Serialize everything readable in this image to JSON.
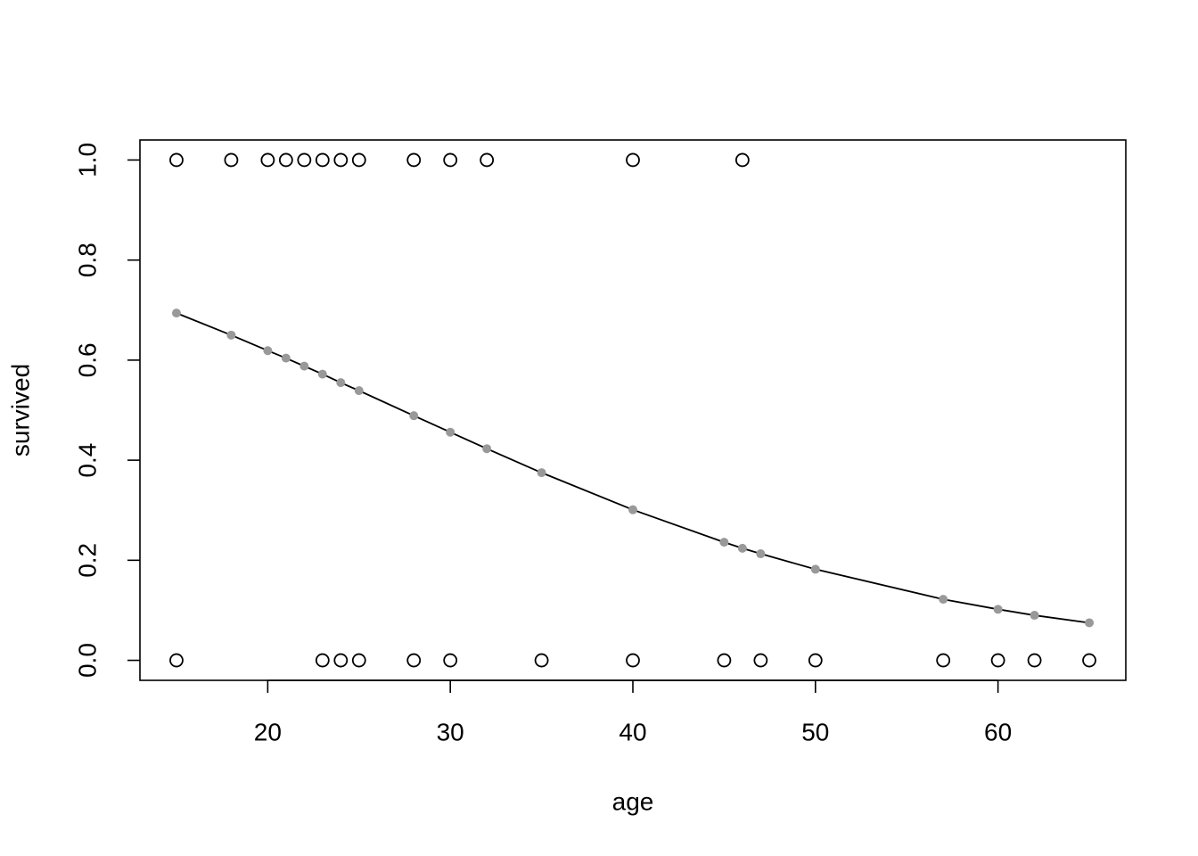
{
  "chart_data": {
    "type": "scatter",
    "x_label": "age",
    "y_label": "survived",
    "xlim": [
      13,
      67
    ],
    "ylim": [
      -0.04,
      1.04
    ],
    "xticks": [
      20,
      30,
      40,
      50,
      60
    ],
    "yticks": [
      {
        "value": 0,
        "label": "0.0"
      },
      0.2,
      0.4,
      0.6,
      0.8,
      {
        "value": 1,
        "label": "1.0"
      }
    ],
    "series": [
      {
        "color": "#000000",
        "marker": "open",
        "line": false,
        "x": [
          15,
          18,
          20,
          21,
          22,
          23,
          24,
          25,
          28,
          30,
          32,
          40,
          46,
          15,
          23,
          24,
          25,
          28,
          30,
          35,
          40,
          45,
          47,
          50,
          57,
          60,
          62,
          65
        ],
        "values": [
          1,
          1,
          1,
          1,
          1,
          1,
          1,
          1,
          1,
          1,
          1,
          1,
          1,
          0,
          0,
          0,
          0,
          0,
          0,
          0,
          0,
          0,
          0,
          0,
          0,
          0,
          0,
          0
        ]
      },
      {
        "color": "#999999",
        "line_color": "#000000",
        "marker": "filled",
        "line": true,
        "x": [
          15,
          18,
          20,
          21,
          22,
          23,
          24,
          25,
          28,
          30,
          32,
          35,
          40,
          45,
          46,
          47,
          50,
          57,
          60,
          62,
          65
        ],
        "values": [
          0.694,
          0.65,
          0.619,
          0.604,
          0.588,
          0.572,
          0.555,
          0.539,
          0.489,
          0.456,
          0.423,
          0.375,
          0.301,
          0.236,
          0.224,
          0.213,
          0.182,
          0.122,
          0.102,
          0.09,
          0.075
        ]
      }
    ]
  }
}
